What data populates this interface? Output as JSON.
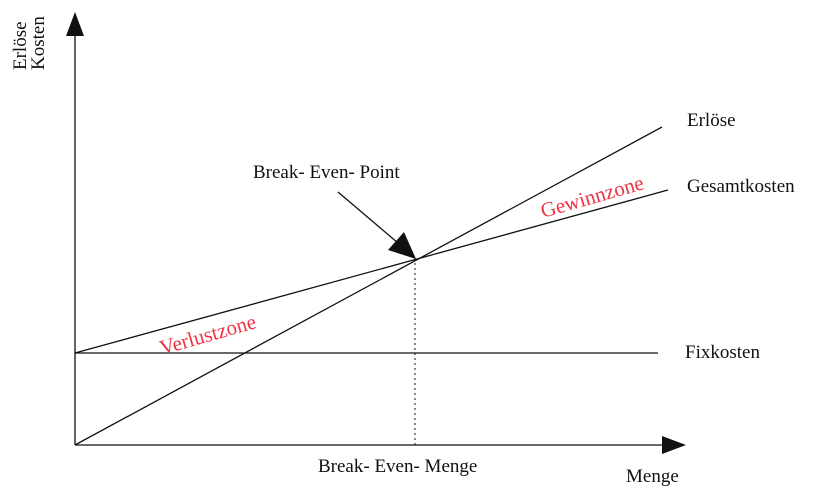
{
  "axes": {
    "y_label": [
      "Erlöse",
      "Kosten"
    ],
    "x_label": "Menge"
  },
  "lines": {
    "revenue": "Erlöse",
    "total_cost": "Gesamtkosten",
    "fixed_cost": "Fixkosten"
  },
  "annotations": {
    "break_even_point": "Break- Even- Point",
    "break_even_quantity": "Break- Even- Menge",
    "profit_zone": "Gewinnzone",
    "loss_zone": "Verlustzone"
  }
}
